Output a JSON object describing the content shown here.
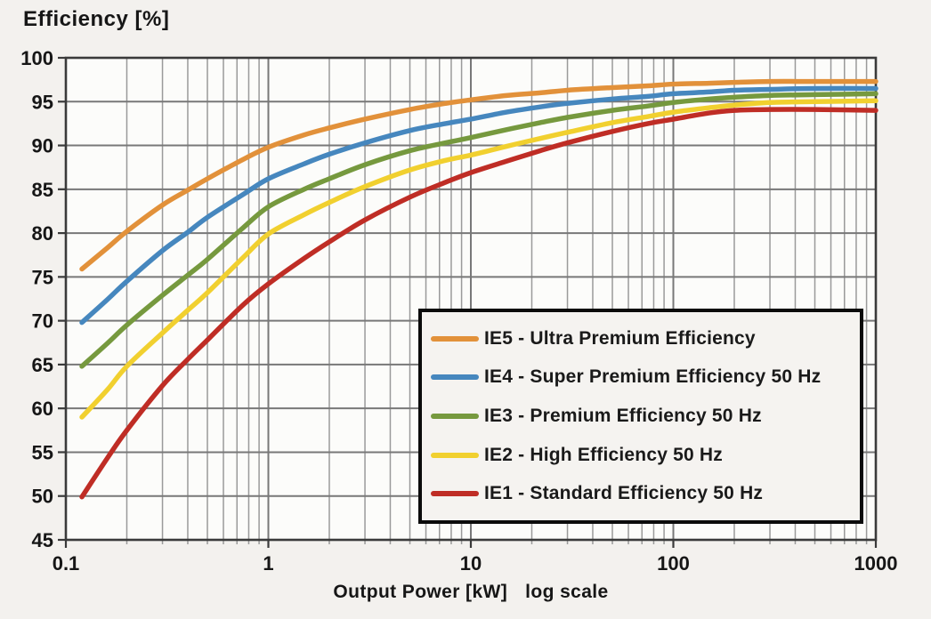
{
  "title": "Efficiency [%]",
  "x_axis": {
    "label": "Output Power [kW]",
    "label_suffix": "log scale",
    "tick_labels": [
      "0.1",
      "1",
      "10",
      "100",
      "1000"
    ],
    "min": 0.1,
    "max": 1000,
    "scale": "log"
  },
  "y_axis": {
    "tick_labels": [
      "100",
      "95",
      "90",
      "85",
      "80",
      "75",
      "70",
      "65",
      "60",
      "55",
      "50",
      "45"
    ],
    "min": 45,
    "max": 100,
    "step": 5
  },
  "legend": {
    "items": [
      {
        "label": "IE5 - Ultra Premium Efficiency",
        "color": "#E2913A"
      },
      {
        "label": "IE4 - Super Premium Efficiency 50 Hz",
        "color": "#4687BE"
      },
      {
        "label": "IE3 - Premium Efficiency 50 Hz",
        "color": "#76993E"
      },
      {
        "label": "IE2 - High Efficiency 50 Hz",
        "color": "#F1D02F"
      },
      {
        "label": "IE1 - Standard Efficiency 50 Hz",
        "color": "#BF2D25"
      }
    ]
  },
  "colors": {
    "background": "#f3f1ee",
    "plot_background": "#fcfcfa",
    "grid_minor": "#9a9a9a",
    "grid_major": "#787878",
    "border": "#3a3a3a",
    "text": "#161616"
  },
  "chart_data": {
    "type": "line",
    "title": "Efficiency [%]",
    "xlabel": "Output Power [kW] log scale",
    "ylabel": "Efficiency [%]",
    "x_scale": "log",
    "xlim": [
      0.1,
      1000
    ],
    "ylim": [
      45,
      100
    ],
    "grid": true,
    "legend_position": "inset lower-right",
    "series": [
      {
        "name": "IE5 - Ultra Premium Efficiency",
        "color": "#E2913A",
        "points": [
          [
            0.12,
            75.9
          ],
          [
            0.16,
            78.3
          ],
          [
            0.2,
            80.2
          ],
          [
            0.3,
            83.2
          ],
          [
            0.4,
            84.9
          ],
          [
            0.5,
            86.2
          ],
          [
            0.75,
            88.4
          ],
          [
            1,
            89.8
          ],
          [
            1.5,
            91.2
          ],
          [
            2,
            92.0
          ],
          [
            3,
            93.0
          ],
          [
            5,
            94.1
          ],
          [
            7.5,
            94.8
          ],
          [
            10,
            95.2
          ],
          [
            15,
            95.7
          ],
          [
            22,
            96.0
          ],
          [
            30,
            96.3
          ],
          [
            50,
            96.6
          ],
          [
            75,
            96.8
          ],
          [
            100,
            97.0
          ],
          [
            150,
            97.1
          ],
          [
            200,
            97.2
          ],
          [
            300,
            97.3
          ],
          [
            500,
            97.3
          ],
          [
            1000,
            97.3
          ]
        ]
      },
      {
        "name": "IE4 - Super Premium Efficiency 50 Hz",
        "color": "#4687BE",
        "points": [
          [
            0.12,
            69.8
          ],
          [
            0.16,
            72.4
          ],
          [
            0.2,
            74.5
          ],
          [
            0.3,
            78.0
          ],
          [
            0.4,
            80.1
          ],
          [
            0.5,
            81.8
          ],
          [
            0.75,
            84.4
          ],
          [
            1,
            86.2
          ],
          [
            1.5,
            87.9
          ],
          [
            2,
            89.0
          ],
          [
            3,
            90.3
          ],
          [
            5,
            91.7
          ],
          [
            7.5,
            92.5
          ],
          [
            10,
            93.0
          ],
          [
            15,
            93.8
          ],
          [
            22,
            94.4
          ],
          [
            30,
            94.8
          ],
          [
            50,
            95.3
          ],
          [
            75,
            95.6
          ],
          [
            100,
            95.9
          ],
          [
            150,
            96.1
          ],
          [
            200,
            96.3
          ],
          [
            300,
            96.4
          ],
          [
            500,
            96.5
          ],
          [
            1000,
            96.5
          ]
        ]
      },
      {
        "name": "IE3 - Premium Efficiency 50 Hz",
        "color": "#76993E",
        "points": [
          [
            0.12,
            64.8
          ],
          [
            0.16,
            67.4
          ],
          [
            0.2,
            69.5
          ],
          [
            0.3,
            72.9
          ],
          [
            0.4,
            75.2
          ],
          [
            0.5,
            77.0
          ],
          [
            0.75,
            80.6
          ],
          [
            1,
            83.0
          ],
          [
            1.5,
            85.0
          ],
          [
            2,
            86.2
          ],
          [
            3,
            87.8
          ],
          [
            5,
            89.4
          ],
          [
            7.5,
            90.3
          ],
          [
            10,
            90.9
          ],
          [
            15,
            91.8
          ],
          [
            22,
            92.6
          ],
          [
            30,
            93.2
          ],
          [
            50,
            94.0
          ],
          [
            75,
            94.5
          ],
          [
            100,
            94.9
          ],
          [
            150,
            95.3
          ],
          [
            200,
            95.5
          ],
          [
            300,
            95.7
          ],
          [
            500,
            95.8
          ],
          [
            1000,
            95.9
          ]
        ]
      },
      {
        "name": "IE2 - High Efficiency 50 Hz",
        "color": "#F1D02F",
        "points": [
          [
            0.12,
            59.0
          ],
          [
            0.16,
            62.1
          ],
          [
            0.2,
            64.8
          ],
          [
            0.3,
            68.6
          ],
          [
            0.4,
            71.2
          ],
          [
            0.5,
            73.2
          ],
          [
            0.75,
            77.2
          ],
          [
            1,
            79.9
          ],
          [
            1.5,
            82.1
          ],
          [
            2,
            83.5
          ],
          [
            3,
            85.3
          ],
          [
            5,
            87.2
          ],
          [
            7.5,
            88.3
          ],
          [
            10,
            88.9
          ],
          [
            15,
            89.9
          ],
          [
            22,
            90.8
          ],
          [
            30,
            91.5
          ],
          [
            50,
            92.6
          ],
          [
            75,
            93.3
          ],
          [
            100,
            93.8
          ],
          [
            150,
            94.3
          ],
          [
            200,
            94.6
          ],
          [
            300,
            94.9
          ],
          [
            500,
            95.0
          ],
          [
            1000,
            95.1
          ]
        ]
      },
      {
        "name": "IE1 - Standard Efficiency 50 Hz",
        "color": "#BF2D25",
        "points": [
          [
            0.12,
            49.9
          ],
          [
            0.16,
            54.3
          ],
          [
            0.2,
            57.5
          ],
          [
            0.3,
            62.6
          ],
          [
            0.4,
            65.6
          ],
          [
            0.5,
            67.8
          ],
          [
            0.75,
            71.8
          ],
          [
            1,
            74.2
          ],
          [
            1.5,
            77.1
          ],
          [
            2,
            79.0
          ],
          [
            3,
            81.5
          ],
          [
            5,
            84.1
          ],
          [
            7.5,
            85.8
          ],
          [
            10,
            86.9
          ],
          [
            15,
            88.2
          ],
          [
            22,
            89.4
          ],
          [
            30,
            90.3
          ],
          [
            50,
            91.6
          ],
          [
            75,
            92.5
          ],
          [
            100,
            93.0
          ],
          [
            150,
            93.7
          ],
          [
            200,
            94.0
          ],
          [
            300,
            94.1
          ],
          [
            500,
            94.1
          ],
          [
            1000,
            94.0
          ]
        ]
      }
    ]
  }
}
